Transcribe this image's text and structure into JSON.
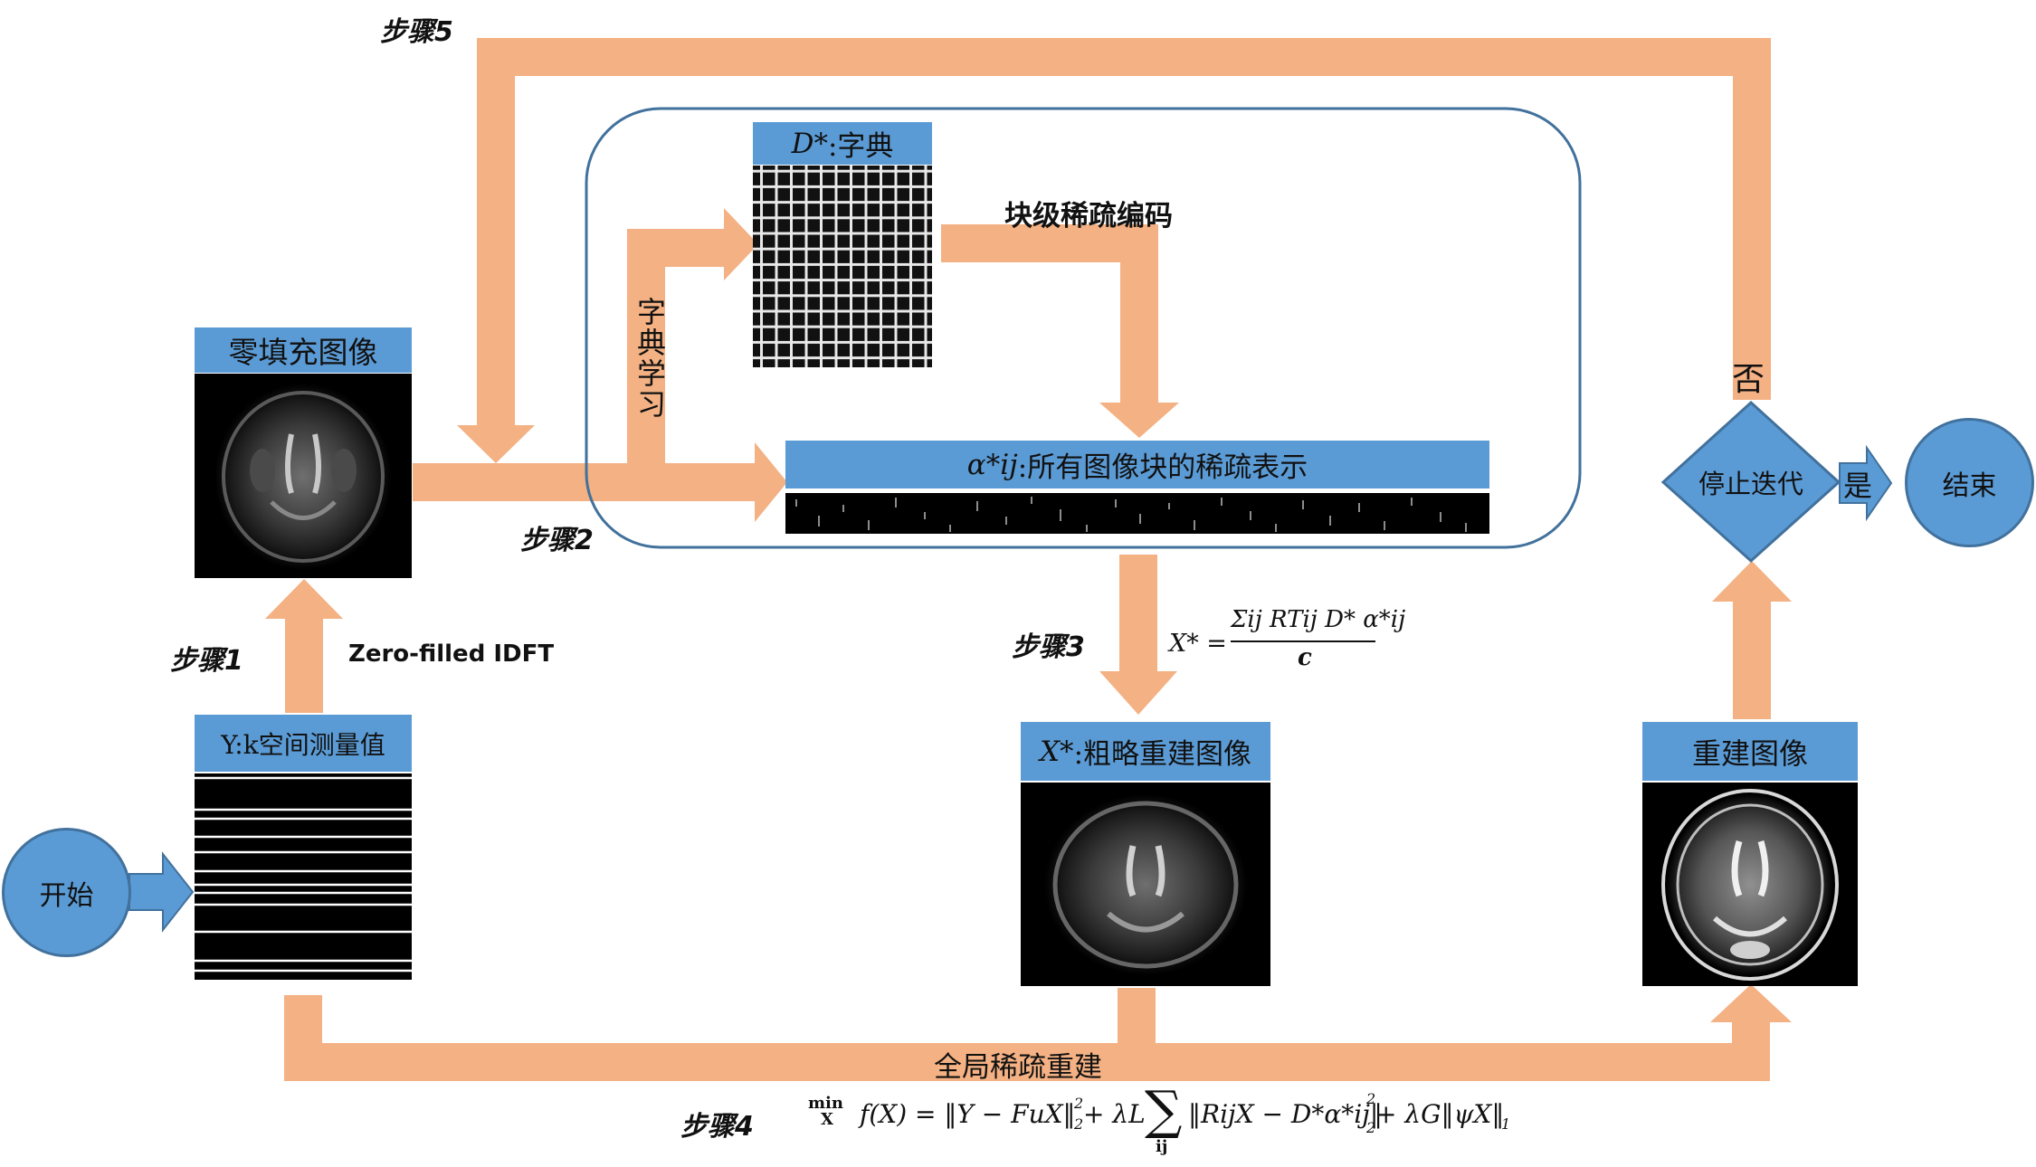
{
  "colors": {
    "arrow": "#f4b183",
    "box": "#5b9bd5",
    "box_border": "#41719c",
    "panel_border": "#41719c",
    "image_bg": "#000000"
  },
  "steps": {
    "s1": "步骤1",
    "s2": "步骤2",
    "s3": "步骤3",
    "s4": "步骤4",
    "s5": "步骤5"
  },
  "nodes": {
    "start": "开始",
    "end": "结束",
    "kspace": "Y:k空间测量值",
    "zero_filled": "零填充图像",
    "dictionary": ":字典",
    "dictionary_sym": "D*",
    "sparse_rep": ":所有图像块的稀疏表示",
    "sparse_rep_sym": "α*ij",
    "coarse": ":粗略重建图像",
    "coarse_sym": "X*",
    "reconstructed": "重建图像",
    "stop": "停止迭代"
  },
  "edges": {
    "idft": "Zero-filled IDFT",
    "dict_learning": "字典学习",
    "block_sparse_coding": "块级稀疏编码",
    "global_recon": "全局稀疏重建",
    "yes": "是",
    "no": "否"
  },
  "formulas": {
    "step3_lhs": "X* =",
    "step3_num": "Σij RTij D* α*ij",
    "step3_den": "c",
    "step4_min": "min",
    "step4_min_sub": "X",
    "step4_f": "f(X) = ‖Y − FuX‖",
    "step4_sup1": "2",
    "step4_sub1": "2",
    "step4_lambdaL": " + λL",
    "step4_sum": "∑",
    "step4_sum_sub": "ij",
    "step4_term": "‖RijX − D*α*ij‖",
    "step4_sup2": "2",
    "step4_sub2": "2",
    "step4_rest": " + λG‖ψX‖",
    "step4_sub3": "1"
  }
}
